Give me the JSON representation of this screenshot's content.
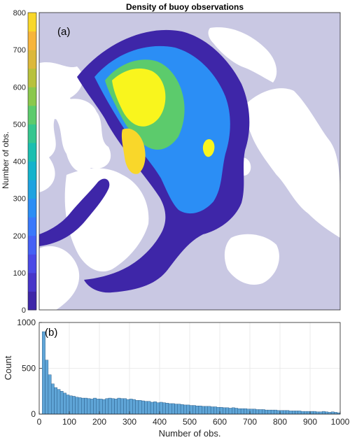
{
  "chart_data": [
    {
      "type": "heatmap",
      "title": "Density of buoy observations",
      "panel_label": "(a)",
      "ylabel": "Number of obs.",
      "colorbar": {
        "ticks": [
          "0",
          "100",
          "200",
          "300",
          "400",
          "500",
          "600",
          "700",
          "800"
        ],
        "range": [
          0,
          800
        ],
        "step": 50,
        "colors": [
          "#3e26a8",
          "#4735c9",
          "#4a49e6",
          "#4561f5",
          "#3a79fb",
          "#2b8ef5",
          "#1ea3e0",
          "#14b3cc",
          "#1bbfb0",
          "#35c68f",
          "#5ccb6c",
          "#8bc84c",
          "#b8c13c",
          "#dcb83a",
          "#f7b53b",
          "#f9d72a",
          "#f9f51d"
        ]
      },
      "map": {
        "ocean_color": "#c9c8e3",
        "land_color": "#ffffff",
        "description_level": "Arctic Ocean region"
      }
    },
    {
      "type": "bar",
      "panel_label": "(b)",
      "xlabel": "Number of obs.",
      "ylabel": "Count",
      "xlim": [
        0,
        1000
      ],
      "ylim": [
        0,
        1000
      ],
      "xticks": [
        "0",
        "100",
        "200",
        "300",
        "400",
        "500",
        "600",
        "700",
        "800",
        "900",
        "1000"
      ],
      "yticks": [
        "0",
        "500",
        "1000"
      ],
      "bin_width": 10,
      "bar_color": "#5fa5d7",
      "bin_starts": [
        0,
        10,
        20,
        30,
        40,
        50,
        60,
        70,
        80,
        90,
        100,
        110,
        120,
        130,
        140,
        150,
        160,
        170,
        180,
        190,
        200,
        210,
        220,
        230,
        240,
        250,
        260,
        270,
        280,
        290,
        300,
        310,
        320,
        330,
        340,
        350,
        360,
        370,
        380,
        390,
        400,
        410,
        420,
        430,
        440,
        450,
        460,
        470,
        480,
        490,
        500,
        510,
        520,
        530,
        540,
        550,
        560,
        570,
        580,
        590,
        600,
        610,
        620,
        630,
        640,
        650,
        660,
        670,
        680,
        690,
        700,
        710,
        720,
        730,
        740,
        750,
        760,
        770,
        780,
        790,
        800,
        810,
        820,
        830,
        840,
        850,
        860,
        870,
        880,
        890,
        900,
        910,
        920,
        930,
        940,
        950,
        960,
        970,
        980,
        990
      ],
      "values": [
        0,
        900,
        590,
        430,
        330,
        290,
        270,
        250,
        230,
        210,
        200,
        195,
        185,
        180,
        175,
        175,
        170,
        165,
        175,
        165,
        165,
        160,
        170,
        175,
        170,
        165,
        175,
        170,
        170,
        160,
        165,
        160,
        150,
        150,
        145,
        140,
        140,
        130,
        135,
        125,
        130,
        125,
        120,
        115,
        115,
        110,
        110,
        105,
        100,
        100,
        95,
        95,
        90,
        90,
        85,
        85,
        85,
        80,
        80,
        75,
        75,
        70,
        70,
        65,
        70,
        65,
        60,
        60,
        60,
        55,
        55,
        55,
        50,
        50,
        50,
        45,
        45,
        45,
        45,
        40,
        40,
        40,
        40,
        35,
        35,
        35,
        35,
        30,
        30,
        30,
        30,
        30,
        25,
        25,
        30,
        25,
        20,
        25,
        20,
        15
      ]
    }
  ]
}
